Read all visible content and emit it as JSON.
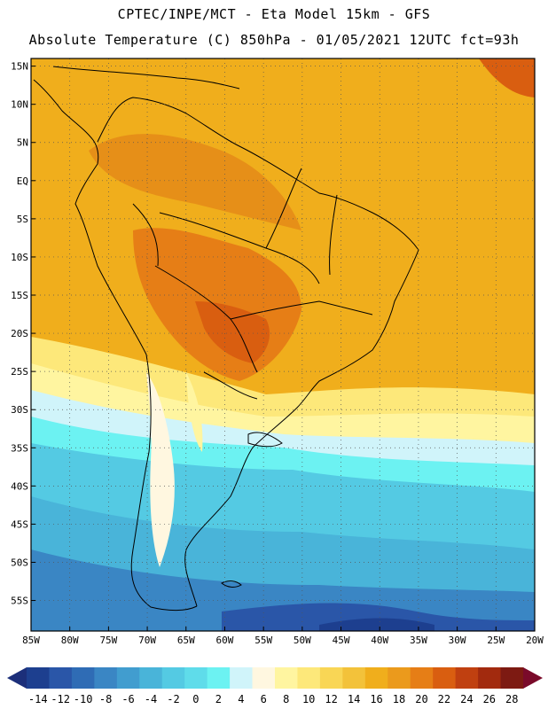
{
  "header": {
    "line1": "CPTEC/INPE/MCT -  Eta Model 15km - GFS",
    "line2": "Absolute Temperature (C) 850hPa - 01/05/2021 12UTC fct=93h"
  },
  "map": {
    "lon_range": [
      -85,
      -20
    ],
    "lat_range": [
      -59,
      16
    ],
    "lat_ticks": [
      {
        "value": 15,
        "label": "15N"
      },
      {
        "value": 10,
        "label": "10N"
      },
      {
        "value": 5,
        "label": "5N"
      },
      {
        "value": 0,
        "label": "EQ"
      },
      {
        "value": -5,
        "label": "5S"
      },
      {
        "value": -10,
        "label": "10S"
      },
      {
        "value": -15,
        "label": "15S"
      },
      {
        "value": -20,
        "label": "20S"
      },
      {
        "value": -25,
        "label": "25S"
      },
      {
        "value": -30,
        "label": "30S"
      },
      {
        "value": -35,
        "label": "35S"
      },
      {
        "value": -40,
        "label": "40S"
      },
      {
        "value": -45,
        "label": "45S"
      },
      {
        "value": -50,
        "label": "50S"
      },
      {
        "value": -55,
        "label": "55S"
      }
    ],
    "lon_ticks": [
      {
        "value": -85,
        "label": "85W"
      },
      {
        "value": -80,
        "label": "80W"
      },
      {
        "value": -75,
        "label": "75W"
      },
      {
        "value": -70,
        "label": "70W"
      },
      {
        "value": -65,
        "label": "65W"
      },
      {
        "value": -60,
        "label": "60W"
      },
      {
        "value": -55,
        "label": "55W"
      },
      {
        "value": -50,
        "label": "50W"
      },
      {
        "value": -45,
        "label": "45W"
      },
      {
        "value": -40,
        "label": "40W"
      },
      {
        "value": -35,
        "label": "35W"
      },
      {
        "value": -30,
        "label": "30W"
      },
      {
        "value": -25,
        "label": "25W"
      },
      {
        "value": -20,
        "label": "20W"
      }
    ]
  },
  "colorbar": {
    "labels": [
      "-14",
      "-12",
      "-10",
      "-8",
      "-6",
      "-4",
      "-2",
      "0",
      "2",
      "4",
      "6",
      "8",
      "10",
      "12",
      "14",
      "16",
      "18",
      "20",
      "22",
      "24",
      "26",
      "28"
    ],
    "colors": [
      "#1d3f8f",
      "#2a56a8",
      "#2f6cb5",
      "#3a86c4",
      "#419dcf",
      "#49b4d9",
      "#54cae3",
      "#5fdcea",
      "#6cf2f2",
      "#d0f4fa",
      "#fff7e0",
      "#fff5a0",
      "#fde87a",
      "#f9d655",
      "#f3c23a",
      "#f0ae1c",
      "#eb9a1c",
      "#e67e16",
      "#d95e10",
      "#c04010",
      "#a22a0e",
      "#7d1a12"
    ],
    "left_arrow_color": "#1c2f7a",
    "right_arrow_color": "#7a0a2a"
  },
  "legend_colors": {
    "ocean_tropical": "#f0ae1c",
    "land_hot": "#e67e16",
    "sea_cold": "#419dcf",
    "deep_cold": "#1d3f8f",
    "coast": "#000000"
  }
}
